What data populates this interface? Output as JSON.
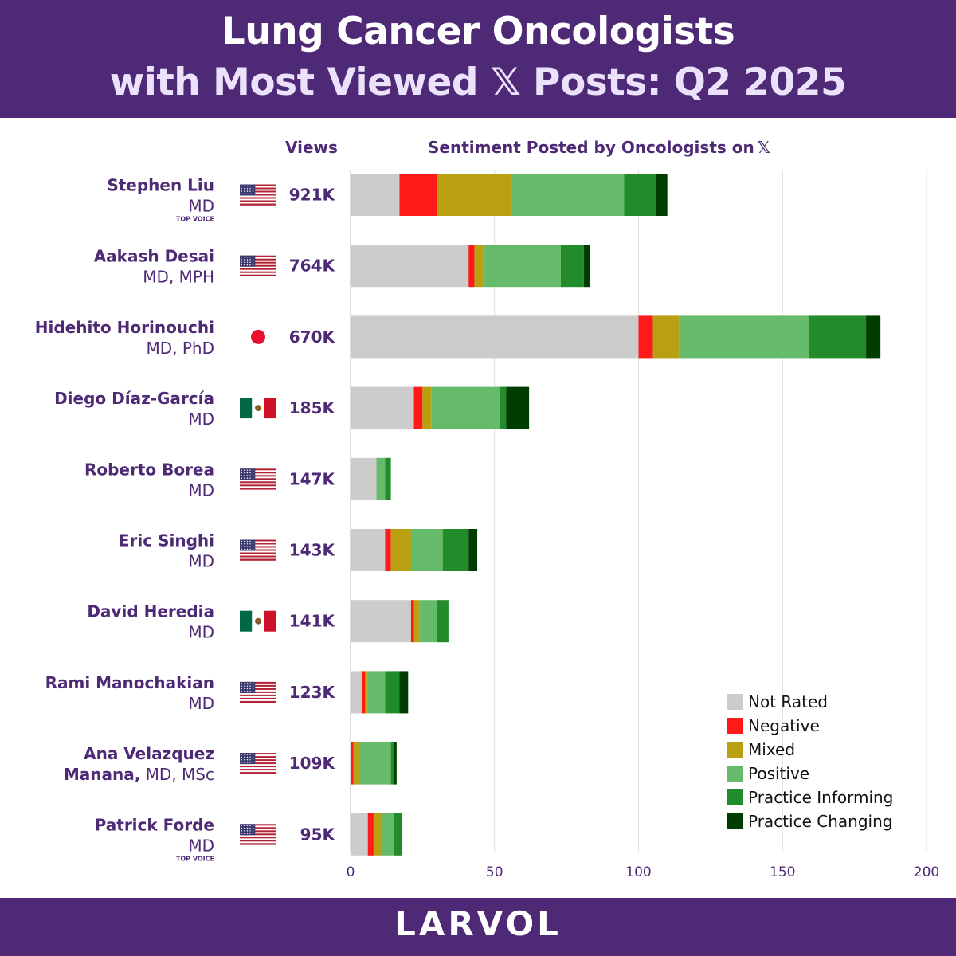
{
  "title": {
    "line1": "Lung Cancer Oncologists",
    "line2": "with Most Viewed 𝕏 Posts: Q2 2025"
  },
  "headers": {
    "views": "Views",
    "sentiment": "Sentiment Posted by Oncologists on",
    "platform_icon": "x-logo-icon",
    "platform_glyph": "𝕏"
  },
  "footer": {
    "logo": "LARVOL"
  },
  "colors": {
    "header_bg": "#4e2a76",
    "name_text": "#4e2a76",
    "Not Rated": "#cccccc",
    "Negative": "#ff1a1a",
    "Mixed": "#b8a012",
    "Positive": "#66bb6a",
    "Practice Informing": "#228b2a",
    "Practice Changing": "#003d00"
  },
  "chart_data": {
    "type": "bar",
    "orientation": "horizontal",
    "stacked": true,
    "title": "Sentiment Posted by Oncologists on 𝕏",
    "xlim": [
      0,
      200
    ],
    "xticks": [
      "0",
      "50",
      "100",
      "150",
      "200"
    ],
    "grid": "vertical",
    "legend_position": "bottom-right",
    "categories": [
      "Stephen Liu",
      "Aakash Desai",
      "Hidehito Horinouchi",
      "Diego Díaz-García",
      "Roberto Borea",
      "Eric Singhi",
      "David Heredia",
      "Rami Manochakian",
      "Ana Velazquez Manana",
      "Patrick Forde"
    ],
    "series": [
      {
        "name": "Not Rated",
        "values": [
          17,
          41,
          100,
          22,
          9,
          12,
          21,
          4,
          0,
          6
        ]
      },
      {
        "name": "Negative",
        "values": [
          13,
          2,
          5,
          3,
          0,
          2,
          1,
          1,
          1,
          2
        ]
      },
      {
        "name": "Mixed",
        "values": [
          26,
          3,
          9,
          3,
          0,
          7,
          2,
          1,
          2,
          3
        ]
      },
      {
        "name": "Positive",
        "values": [
          39,
          27,
          45,
          24,
          3,
          11,
          6,
          6,
          11,
          4
        ]
      },
      {
        "name": "Practice Informing",
        "values": [
          11,
          8,
          20,
          2,
          2,
          9,
          4,
          5,
          1,
          3
        ]
      },
      {
        "name": "Practice Changing",
        "values": [
          4,
          2,
          5,
          8,
          0,
          3,
          0,
          3,
          1,
          0
        ]
      }
    ]
  },
  "rows": [
    {
      "name": "Stephen Liu",
      "credentials": "MD",
      "badge": "TOP VOICE",
      "flag": "us-flag-icon",
      "views": "921K"
    },
    {
      "name": "Aakash Desai",
      "credentials": "MD, MPH",
      "badge": "",
      "flag": "us-flag-icon",
      "views": "764K"
    },
    {
      "name": "Hidehito Horinouchi",
      "credentials": "MD, PhD",
      "badge": "",
      "flag": "japan-flag-icon",
      "views": "670K"
    },
    {
      "name": "Diego Díaz-García",
      "credentials": "MD",
      "badge": "",
      "flag": "mexico-flag-icon",
      "views": "185K"
    },
    {
      "name": "Roberto Borea",
      "credentials": "MD",
      "badge": "",
      "flag": "us-flag-icon",
      "views": "147K"
    },
    {
      "name": "Eric Singhi",
      "credentials": "MD",
      "badge": "",
      "flag": "us-flag-icon",
      "views": "143K"
    },
    {
      "name": "David Heredia",
      "credentials": "MD",
      "badge": "",
      "flag": "mexico-flag-icon",
      "views": "141K"
    },
    {
      "name": "Rami Manochakian",
      "credentials": "MD",
      "badge": "",
      "flag": "us-flag-icon",
      "views": "123K"
    },
    {
      "name": "Ana Velazquez Manana",
      "name_line1": "Ana Velazquez",
      "name_line2": "Manana,",
      "credentials": "MD, MSc",
      "badge": "",
      "flag": "us-flag-icon",
      "views": "109K"
    },
    {
      "name": "Patrick Forde",
      "credentials": "MD",
      "badge": "TOP VOICE",
      "flag": "us-flag-icon",
      "views": "95K"
    }
  ]
}
